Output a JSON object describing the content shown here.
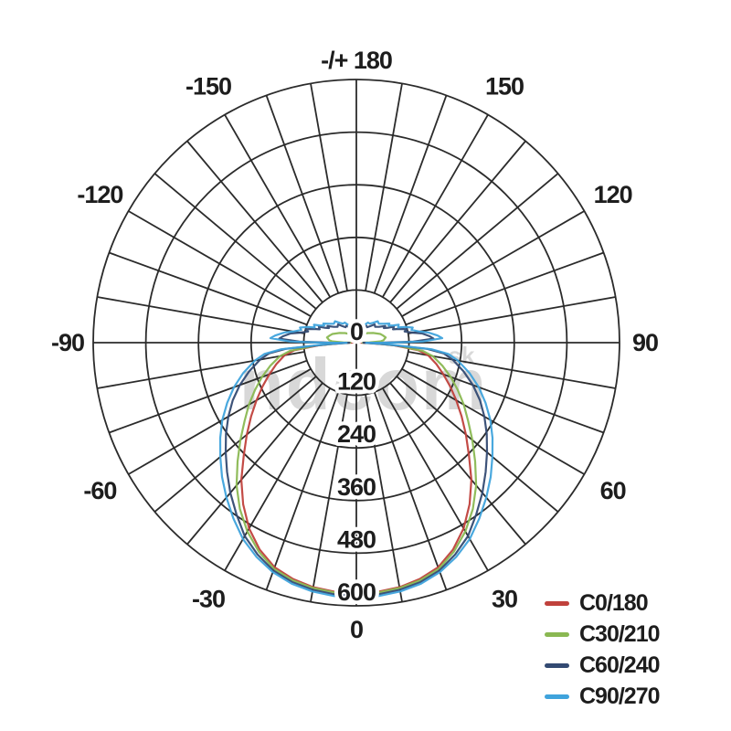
{
  "watermark": {
    "text": "ndcom",
    "suffix": "sk"
  },
  "chart_data": {
    "type": "polar",
    "title": "",
    "description": "Luminous intensity distribution curves (polar photometric diagram)",
    "angular_labels": [
      {
        "angle": 180,
        "label": "-/+ 180"
      },
      {
        "angle": -150,
        "label": "-150"
      },
      {
        "angle": 150,
        "label": "150"
      },
      {
        "angle": -120,
        "label": "-120"
      },
      {
        "angle": 120,
        "label": "120"
      },
      {
        "angle": -90,
        "label": "-90"
      },
      {
        "angle": 90,
        "label": "90"
      },
      {
        "angle": -60,
        "label": "-60"
      },
      {
        "angle": 60,
        "label": "60"
      },
      {
        "angle": -30,
        "label": "-30"
      },
      {
        "angle": 30,
        "label": "30"
      },
      {
        "angle": 0,
        "label": "0"
      }
    ],
    "radial_ticks": [
      "0",
      "120",
      "240",
      "360",
      "480",
      "600"
    ],
    "radial_max": 600,
    "center_tick_label": "0",
    "grid": {
      "ring_values": [
        120,
        240,
        360,
        480,
        600
      ],
      "spoke_step_deg": 10,
      "color": "#2b2b2b"
    },
    "legend_position": "bottom-right",
    "series": [
      {
        "name": "C0/180",
        "color": "#c0413c",
        "symmetric": true,
        "points": [
          [
            0,
            572
          ],
          [
            5,
            570
          ],
          [
            10,
            566
          ],
          [
            15,
            558
          ],
          [
            20,
            545
          ],
          [
            25,
            521
          ],
          [
            30,
            489
          ],
          [
            35,
            450
          ],
          [
            40,
            408
          ],
          [
            45,
            363
          ],
          [
            50,
            326
          ],
          [
            55,
            293
          ],
          [
            60,
            263
          ],
          [
            65,
            236
          ],
          [
            70,
            211
          ],
          [
            75,
            189
          ],
          [
            80,
            166
          ],
          [
            83,
            142
          ],
          [
            86,
            85
          ],
          [
            88,
            32
          ],
          [
            90,
            10
          ],
          [
            93,
            6
          ],
          [
            100,
            5
          ],
          [
            110,
            5
          ],
          [
            120,
            4
          ],
          [
            130,
            4
          ],
          [
            140,
            4
          ],
          [
            150,
            4
          ],
          [
            160,
            4
          ],
          [
            170,
            4
          ],
          [
            180,
            5
          ]
        ]
      },
      {
        "name": "C30/210",
        "color": "#8ab852",
        "symmetric": true,
        "points": [
          [
            0,
            574
          ],
          [
            5,
            572
          ],
          [
            10,
            568
          ],
          [
            15,
            561
          ],
          [
            20,
            549
          ],
          [
            25,
            526
          ],
          [
            30,
            497
          ],
          [
            35,
            463
          ],
          [
            40,
            425
          ],
          [
            45,
            383
          ],
          [
            50,
            345
          ],
          [
            55,
            311
          ],
          [
            60,
            283
          ],
          [
            65,
            255
          ],
          [
            70,
            229
          ],
          [
            75,
            203
          ],
          [
            80,
            177
          ],
          [
            83,
            152
          ],
          [
            86,
            92
          ],
          [
            88,
            40
          ],
          [
            90,
            14
          ],
          [
            91,
            30
          ],
          [
            93,
            55
          ],
          [
            95,
            62
          ],
          [
            100,
            68
          ],
          [
            105,
            63
          ],
          [
            110,
            58
          ],
          [
            115,
            50
          ],
          [
            120,
            44
          ],
          [
            125,
            38
          ],
          [
            130,
            34
          ],
          [
            140,
            26
          ],
          [
            150,
            20
          ],
          [
            160,
            15
          ],
          [
            170,
            11
          ],
          [
            180,
            9
          ]
        ]
      },
      {
        "name": "C60/240",
        "color": "#334a72",
        "symmetric": true,
        "points": [
          [
            0,
            578
          ],
          [
            5,
            576
          ],
          [
            10,
            572
          ],
          [
            15,
            565
          ],
          [
            20,
            553
          ],
          [
            25,
            533
          ],
          [
            30,
            509
          ],
          [
            35,
            477
          ],
          [
            40,
            447
          ],
          [
            45,
            417
          ],
          [
            50,
            389
          ],
          [
            55,
            363
          ],
          [
            60,
            337
          ],
          [
            65,
            311
          ],
          [
            70,
            283
          ],
          [
            75,
            253
          ],
          [
            80,
            223
          ],
          [
            83,
            201
          ],
          [
            85,
            162
          ],
          [
            87,
            62
          ],
          [
            89,
            16
          ],
          [
            90,
            60
          ],
          [
            91,
            130
          ],
          [
            93,
            176
          ],
          [
            95,
            168
          ],
          [
            98,
            151
          ],
          [
            100,
            131
          ],
          [
            103,
            113
          ],
          [
            105,
            119
          ],
          [
            108,
            101
          ],
          [
            110,
            89
          ],
          [
            113,
            93
          ],
          [
            115,
            81
          ],
          [
            118,
            71
          ],
          [
            120,
            76
          ],
          [
            125,
            63
          ],
          [
            130,
            56
          ],
          [
            135,
            59
          ],
          [
            140,
            49
          ],
          [
            145,
            43
          ],
          [
            150,
            45
          ],
          [
            155,
            37
          ],
          [
            160,
            33
          ],
          [
            165,
            35
          ],
          [
            170,
            29
          ],
          [
            175,
            25
          ],
          [
            180,
            23
          ]
        ]
      },
      {
        "name": "C90/270",
        "color": "#3fa3dc",
        "symmetric": true,
        "points": [
          [
            0,
            582
          ],
          [
            5,
            580
          ],
          [
            10,
            576
          ],
          [
            15,
            569
          ],
          [
            20,
            557
          ],
          [
            25,
            539
          ],
          [
            30,
            517
          ],
          [
            35,
            489
          ],
          [
            40,
            461
          ],
          [
            45,
            433
          ],
          [
            50,
            405
          ],
          [
            55,
            379
          ],
          [
            60,
            353
          ],
          [
            65,
            325
          ],
          [
            70,
            297
          ],
          [
            75,
            267
          ],
          [
            80,
            235
          ],
          [
            83,
            211
          ],
          [
            85,
            172
          ],
          [
            87,
            72
          ],
          [
            89,
            22
          ],
          [
            90,
            82
          ],
          [
            91,
            152
          ],
          [
            93,
            196
          ],
          [
            95,
            186
          ],
          [
            98,
            166
          ],
          [
            100,
            146
          ],
          [
            103,
            129
          ],
          [
            105,
            133
          ],
          [
            108,
            116
          ],
          [
            110,
            101
          ],
          [
            113,
            105
          ],
          [
            115,
            93
          ],
          [
            118,
            83
          ],
          [
            120,
            87
          ],
          [
            125,
            75
          ],
          [
            130,
            67
          ],
          [
            135,
            69
          ],
          [
            140,
            59
          ],
          [
            145,
            53
          ],
          [
            150,
            53
          ],
          [
            155,
            45
          ],
          [
            160,
            41
          ],
          [
            165,
            41
          ],
          [
            170,
            35
          ],
          [
            175,
            31
          ],
          [
            180,
            29
          ]
        ]
      }
    ]
  }
}
